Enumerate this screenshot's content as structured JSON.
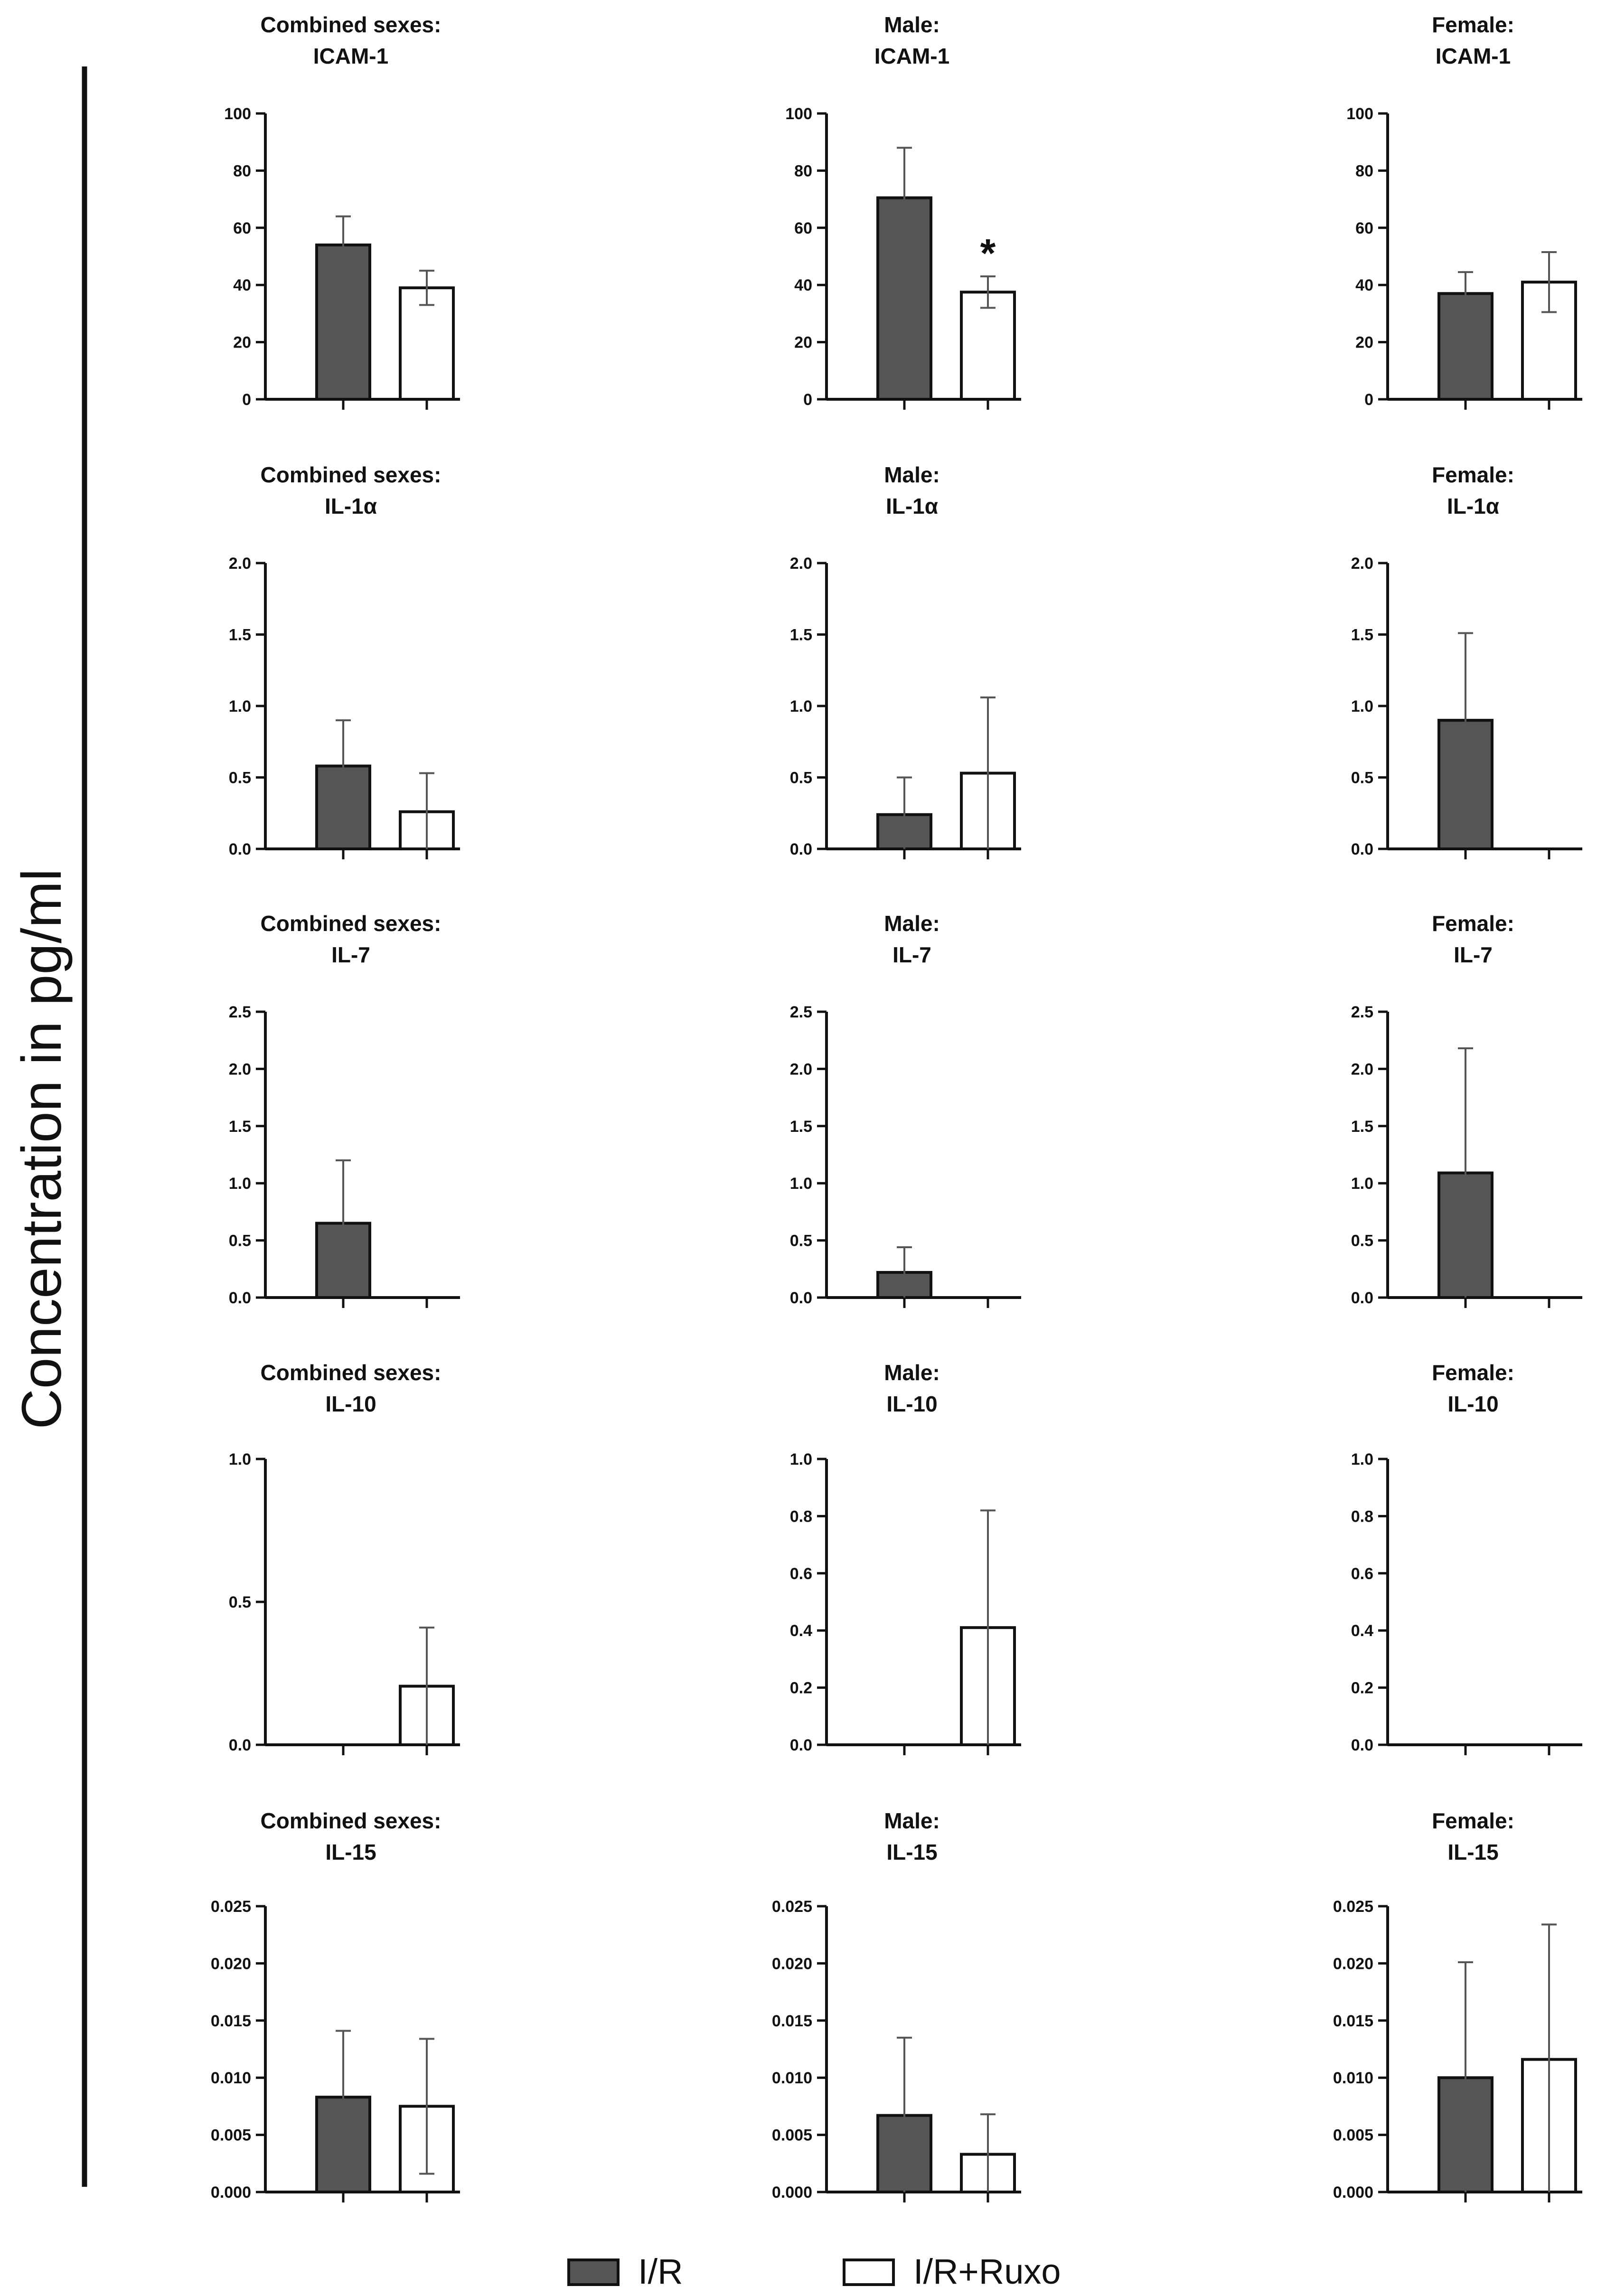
{
  "ylabel": "Concentration in pg/ml",
  "legend": [
    {
      "label": "I/R",
      "color": "#555555"
    },
    {
      "label": "I/R+Ruxo",
      "color": "#ffffff"
    }
  ],
  "chart_data": [
    {
      "type": "bar",
      "title": [
        "Combined sexes:",
        "ICAM-1"
      ],
      "categories": [
        "I/R",
        "I/R+Ruxo"
      ],
      "values": [
        54,
        39
      ],
      "errors": [
        10,
        6
      ],
      "ylim": [
        0,
        100
      ],
      "ticks": [
        "0",
        "20",
        "40",
        "60",
        "80",
        "100"
      ],
      "significance": [
        null,
        null
      ]
    },
    {
      "type": "bar",
      "title": [
        "Male:",
        "ICAM-1"
      ],
      "categories": [
        "I/R",
        "I/R+Ruxo"
      ],
      "values": [
        70.5,
        37.5
      ],
      "errors": [
        17.5,
        5.5
      ],
      "ylim": [
        0,
        100
      ],
      "ticks": [
        "0",
        "20",
        "40",
        "60",
        "80",
        "100"
      ],
      "significance": [
        null,
        "*"
      ]
    },
    {
      "type": "bar",
      "title": [
        "Female:",
        "ICAM-1"
      ],
      "categories": [
        "I/R",
        "I/R+Ruxo"
      ],
      "values": [
        37,
        41
      ],
      "errors": [
        7.5,
        10.5
      ],
      "ylim": [
        0,
        100
      ],
      "ticks": [
        "0",
        "20",
        "40",
        "60",
        "80",
        "100"
      ],
      "significance": [
        null,
        null
      ]
    },
    {
      "type": "bar",
      "title": [
        "Combined sexes:",
        "IL-1α"
      ],
      "categories": [
        "I/R",
        "I/R+Ruxo"
      ],
      "values": [
        0.58,
        0.26
      ],
      "errors": [
        0.32,
        0.27
      ],
      "ylim": [
        0,
        2
      ],
      "ticks": [
        "0.0",
        "0.5",
        "1.0",
        "1.5",
        "2.0"
      ],
      "significance": [
        null,
        null
      ]
    },
    {
      "type": "bar",
      "title": [
        "Male:",
        "IL-1α"
      ],
      "categories": [
        "I/R",
        "I/R+Ruxo"
      ],
      "values": [
        0.24,
        0.53
      ],
      "errors": [
        0.26,
        0.53
      ],
      "ylim": [
        0,
        2
      ],
      "ticks": [
        "0.0",
        "0.5",
        "1.0",
        "1.5",
        "2.0"
      ],
      "significance": [
        null,
        null
      ]
    },
    {
      "type": "bar",
      "title": [
        "Female:",
        "IL-1α"
      ],
      "categories": [
        "I/R",
        "I/R+Ruxo"
      ],
      "values": [
        0.9,
        0
      ],
      "errors": [
        0.61,
        0
      ],
      "ylim": [
        0,
        2
      ],
      "ticks": [
        "0.0",
        "0.5",
        "1.0",
        "1.5",
        "2.0"
      ],
      "significance": [
        null,
        null
      ]
    },
    {
      "type": "bar",
      "title": [
        "Combined sexes:",
        "IL-7"
      ],
      "categories": [
        "I/R",
        "I/R+Ruxo"
      ],
      "values": [
        0.65,
        0
      ],
      "errors": [
        0.55,
        0
      ],
      "ylim": [
        0,
        2.5
      ],
      "ticks": [
        "0.0",
        "0.5",
        "1.0",
        "1.5",
        "2.0",
        "2.5"
      ],
      "significance": [
        null,
        null
      ]
    },
    {
      "type": "bar",
      "title": [
        "Male:",
        "IL-7"
      ],
      "categories": [
        "I/R",
        "I/R+Ruxo"
      ],
      "values": [
        0.22,
        0
      ],
      "errors": [
        0.22,
        0
      ],
      "ylim": [
        0,
        2.5
      ],
      "ticks": [
        "0.0",
        "0.5",
        "1.0",
        "1.5",
        "2.0",
        "2.5"
      ],
      "significance": [
        null,
        null
      ]
    },
    {
      "type": "bar",
      "title": [
        "Female:",
        "IL-7"
      ],
      "categories": [
        "I/R",
        "I/R+Ruxo"
      ],
      "values": [
        1.09,
        0
      ],
      "errors": [
        1.09,
        0
      ],
      "ylim": [
        0,
        2.5
      ],
      "ticks": [
        "0.0",
        "0.5",
        "1.0",
        "1.5",
        "2.0",
        "2.5"
      ],
      "significance": [
        null,
        null
      ]
    },
    {
      "type": "bar",
      "title": [
        "Combined sexes:",
        "IL-10"
      ],
      "categories": [
        "I/R",
        "I/R+Ruxo"
      ],
      "values": [
        0,
        0.205
      ],
      "errors": [
        0,
        0.205
      ],
      "ylim": [
        0,
        1
      ],
      "ticks": [
        "0.0",
        "0.5",
        "1.0"
      ],
      "significance": [
        null,
        null
      ]
    },
    {
      "type": "bar",
      "title": [
        "Male:",
        "IL-10"
      ],
      "categories": [
        "I/R",
        "I/R+Ruxo"
      ],
      "values": [
        0,
        0.41
      ],
      "errors": [
        0,
        0.41
      ],
      "ylim": [
        0,
        1
      ],
      "ticks": [
        "0.0",
        "0.2",
        "0.4",
        "0.6",
        "0.8",
        "1.0"
      ],
      "significance": [
        null,
        null
      ]
    },
    {
      "type": "bar",
      "title": [
        "Female:",
        "IL-10"
      ],
      "categories": [
        "I/R",
        "I/R+Ruxo"
      ],
      "values": [
        0,
        0
      ],
      "errors": [
        0,
        0
      ],
      "ylim": [
        0,
        1
      ],
      "ticks": [
        "0.0",
        "0.2",
        "0.4",
        "0.6",
        "0.8",
        "1.0"
      ],
      "significance": [
        null,
        null
      ]
    },
    {
      "type": "bar",
      "title": [
        "Combined sexes:",
        "IL-15"
      ],
      "categories": [
        "I/R",
        "I/R+Ruxo"
      ],
      "values": [
        0.0083,
        0.0075
      ],
      "errors": [
        0.0058,
        0.0059
      ],
      "ylim": [
        0,
        0.025
      ],
      "ticks": [
        "0.000",
        "0.005",
        "0.010",
        "0.015",
        "0.020",
        "0.025"
      ],
      "significance": [
        null,
        null
      ]
    },
    {
      "type": "bar",
      "title": [
        "Male:",
        "IL-15"
      ],
      "categories": [
        "I/R",
        "I/R+Ruxo"
      ],
      "values": [
        0.0067,
        0.0033
      ],
      "errors": [
        0.0068,
        0.0035
      ],
      "ylim": [
        0,
        0.025
      ],
      "ticks": [
        "0.000",
        "0.005",
        "0.010",
        "0.015",
        "0.020",
        "0.025"
      ],
      "significance": [
        null,
        null
      ]
    },
    {
      "type": "bar",
      "title": [
        "Female:",
        "IL-15"
      ],
      "categories": [
        "I/R",
        "I/R+Ruxo"
      ],
      "values": [
        0.01,
        0.0116
      ],
      "errors": [
        0.0101,
        0.0118
      ],
      "ylim": [
        0,
        0.025
      ],
      "ticks": [
        "0.000",
        "0.005",
        "0.010",
        "0.015",
        "0.020",
        "0.025"
      ],
      "significance": [
        null,
        null
      ]
    }
  ]
}
